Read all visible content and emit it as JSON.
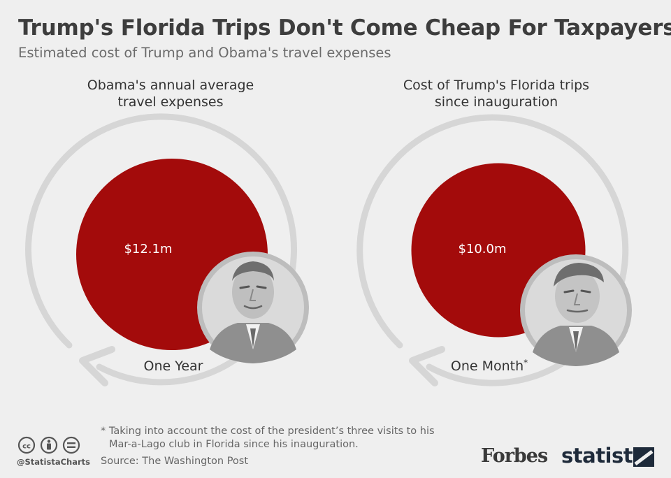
{
  "header": {
    "title": "Trump's Florida Trips Don't Come Cheap For Taxpayers",
    "subtitle": "Estimated cost of Trump and Obama's travel expenses"
  },
  "chart_data": {
    "type": "bubble",
    "unit": "$m",
    "items": [
      {
        "title_line1": "Obama's annual average",
        "title_line2": "travel expenses",
        "value": 12.1,
        "value_label": "$12.1m",
        "period_label": "One Year",
        "period_footnote_mark": "",
        "portrait_icon": "obama-portrait-icon"
      },
      {
        "title_line1": "Cost of Trump's Florida trips",
        "title_line2": "since inauguration",
        "value": 10.0,
        "value_label": "$10.0m",
        "period_label": "One Month",
        "period_footnote_mark": "*",
        "portrait_icon": "trump-portrait-icon"
      }
    ]
  },
  "footer": {
    "footnote_line1": "* Taking into account the cost of the president’s three visits to his",
    "footnote_line2": "Mar-a-Lago club in Florida since his inauguration.",
    "source": "Source: The Washington Post",
    "handle": "@StatistaCharts",
    "brand_forbes": "Forbes",
    "brand_statista": "statista"
  },
  "colors": {
    "bubble": "#a30b0b",
    "ring": "#d6d6d6",
    "portrait_bg": "#d9d9d9",
    "portrait_ring": "#c4c4c4",
    "background": "#efefef"
  }
}
